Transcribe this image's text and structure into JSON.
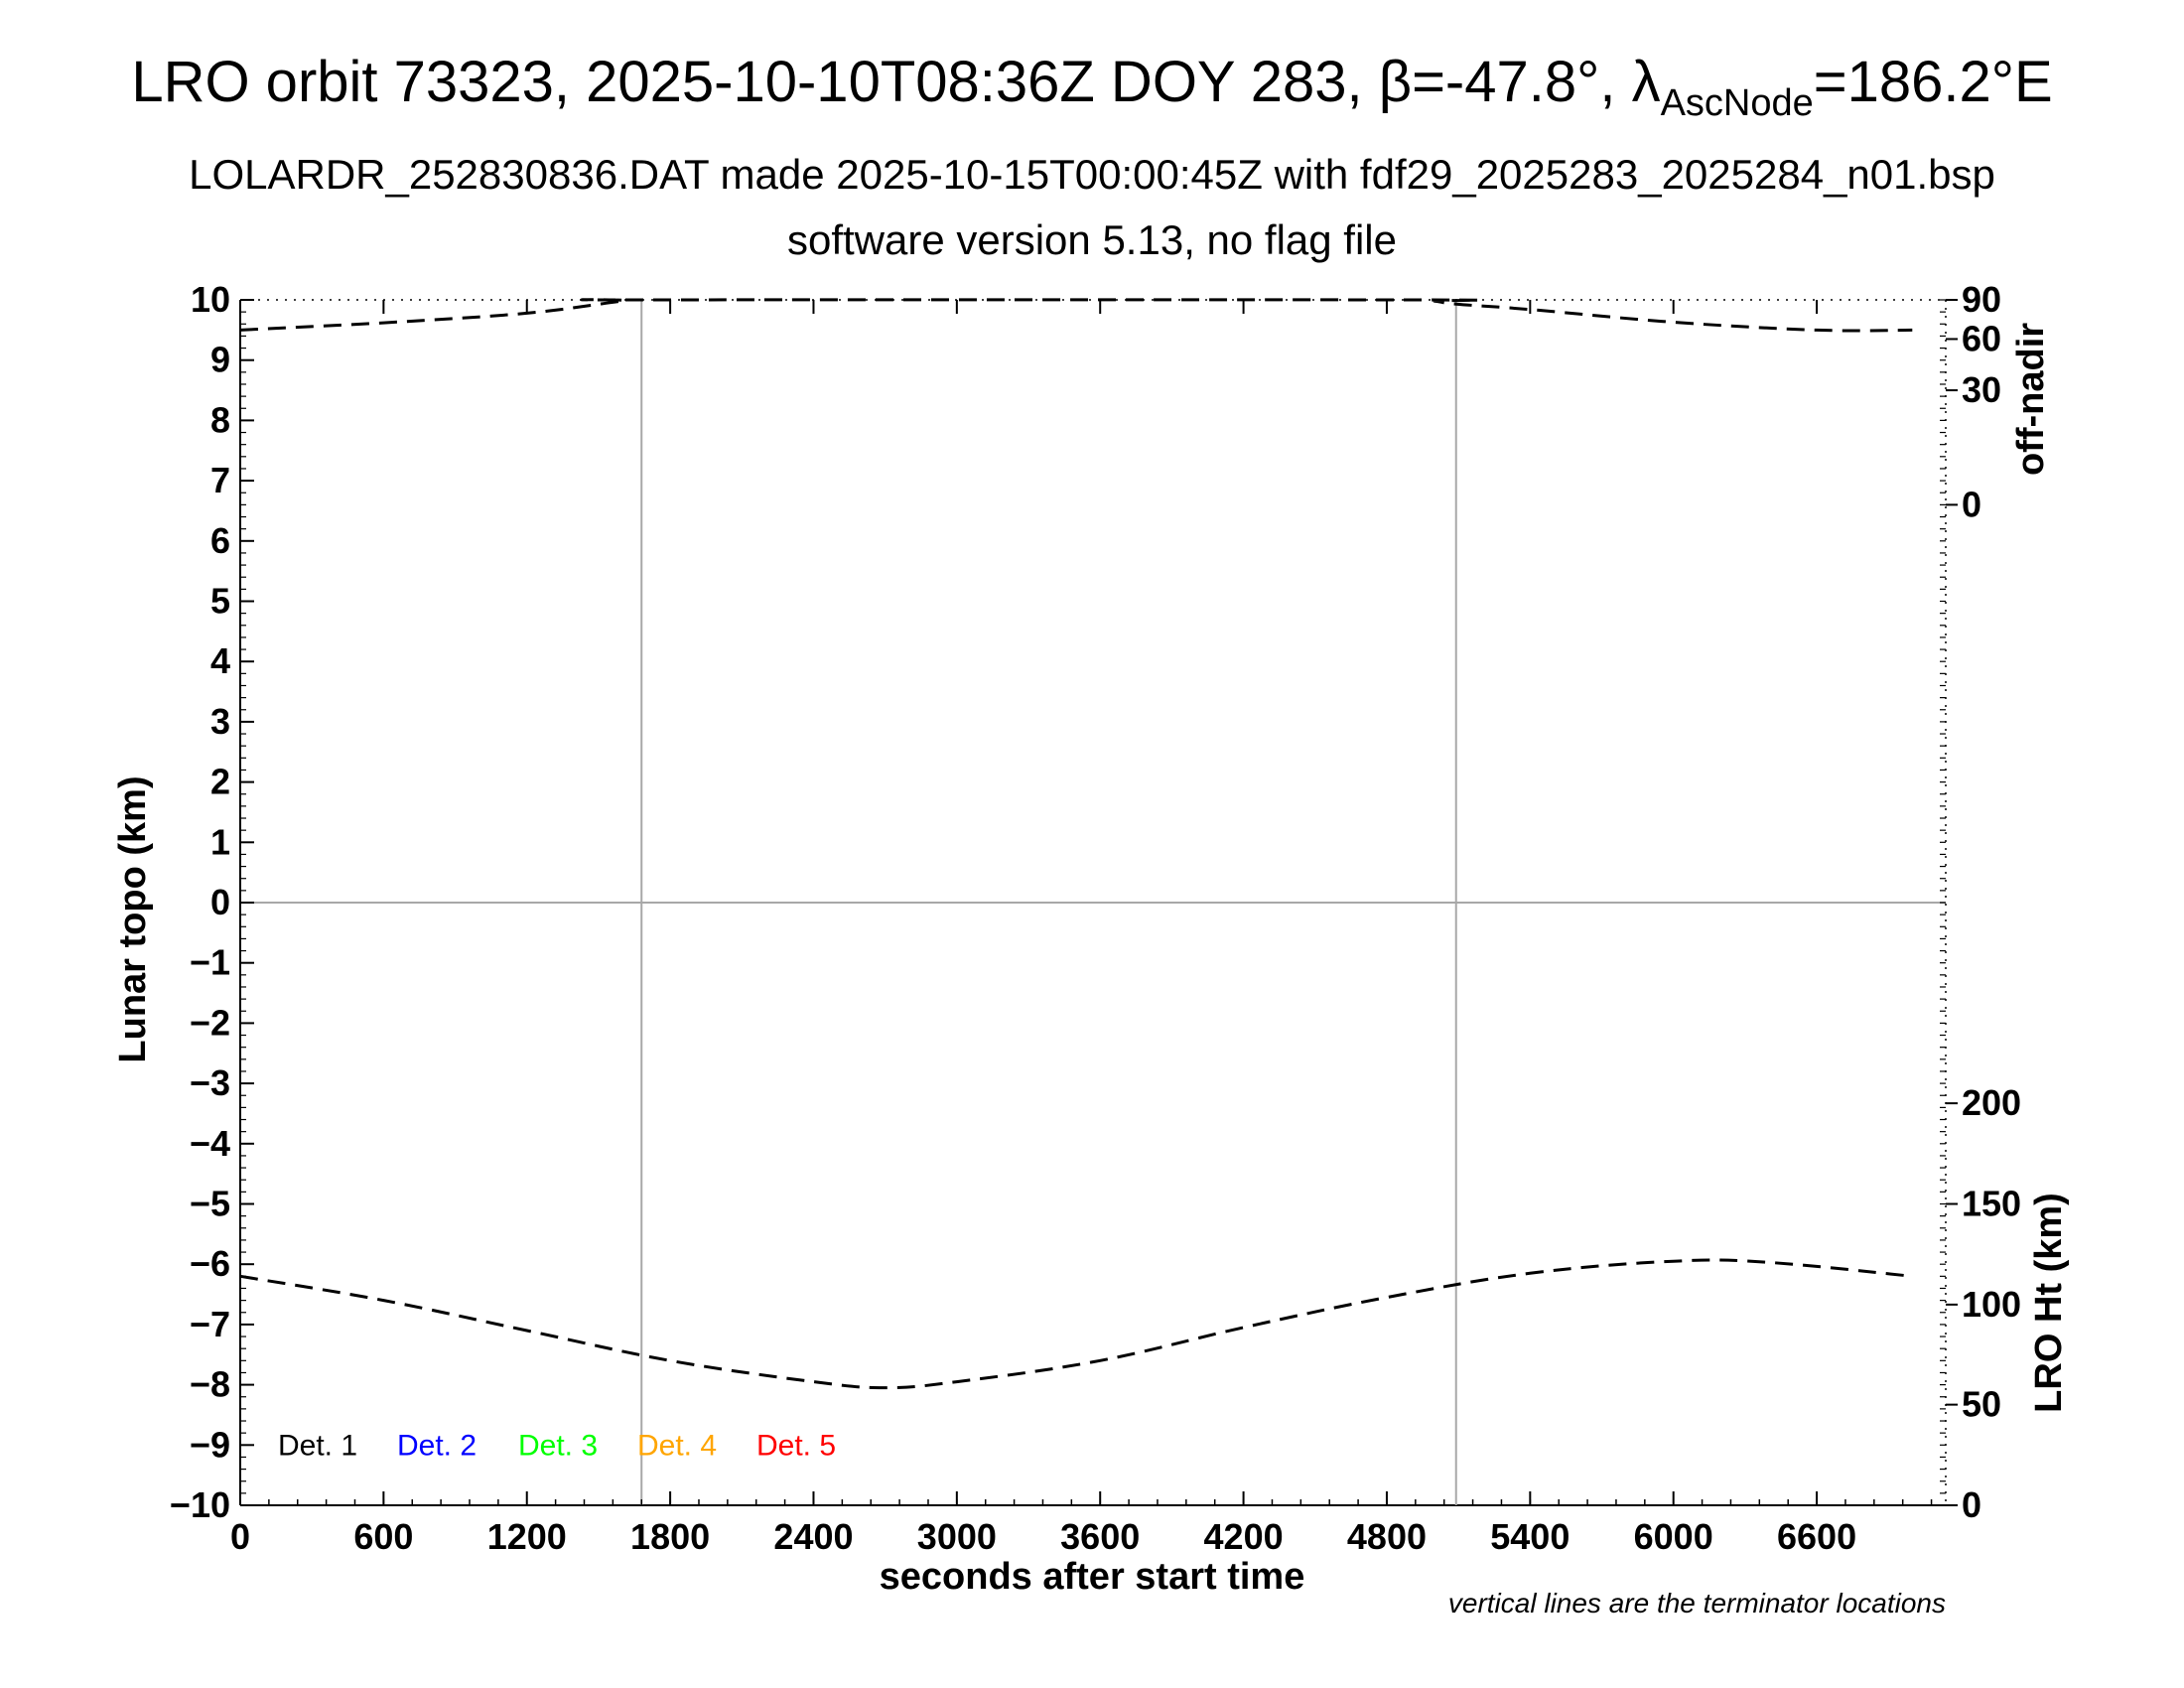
{
  "chart_data": {
    "type": "line",
    "title": {
      "line1_prefix": "LRO orbit 73323, 2025-10-10T08:36Z DOY 283, ",
      "beta_symbol": "β",
      "beta_value": "=-47.8°, ",
      "lambda_symbol": "λ",
      "lambda_subscript": "AscNode",
      "lambda_value": "=186.2°E"
    },
    "subtitle": "LOLARDR_252830836.DAT made 2025-10-15T00:00:45Z with fdf29_2025283_2025284_n01.bsp",
    "subtitle2": "software version 5.13, no flag file",
    "xlabel": "seconds after start time",
    "ylabel": "Lunar topo (km)",
    "y2label_top": "off-nadir",
    "y2label_bottom": "LRO Ht (km)",
    "footnote": "vertical lines are the terminator locations",
    "xlim": [
      0,
      7140
    ],
    "ylim": [
      -10,
      10
    ],
    "x_ticks": [
      0,
      600,
      1200,
      1800,
      2400,
      3000,
      3600,
      4200,
      4800,
      5400,
      6000,
      6600
    ],
    "y_ticks": [
      10,
      9,
      8,
      7,
      6,
      5,
      4,
      3,
      2,
      1,
      0,
      -1,
      -2,
      -3,
      -4,
      -5,
      -6,
      -7,
      -8,
      -9,
      -10
    ],
    "y_tick_labels": [
      "10",
      "9",
      "8",
      "7",
      "6",
      "5",
      "4",
      "3",
      "2",
      "1",
      "0",
      "−1",
      "−2",
      "−3",
      "−4",
      "−5",
      "−6",
      "−7",
      "−8",
      "−9",
      "−10"
    ],
    "offnadir_ticks": [
      {
        "label": "90",
        "y": 10
      },
      {
        "label": "60",
        "y": 9.35
      },
      {
        "label": "30",
        "y": 8.5
      },
      {
        "label": "0",
        "y": 6.6
      }
    ],
    "ht_ticks": [
      {
        "label": "200",
        "y": -3.33
      },
      {
        "label": "150",
        "y": -5
      },
      {
        "label": "100",
        "y": -6.67
      },
      {
        "label": "50",
        "y": -8.33
      },
      {
        "label": "0",
        "y": -10
      }
    ],
    "terminators_x": [
      1680,
      5090
    ],
    "legend": [
      {
        "label": "Det. 1",
        "color": "#000000"
      },
      {
        "label": "Det. 2",
        "color": "#0000ff"
      },
      {
        "label": "Det. 3",
        "color": "#00ff00"
      },
      {
        "label": "Det. 4",
        "color": "#ffa500"
      },
      {
        "label": "Det. 5",
        "color": "#ff0000"
      }
    ],
    "series": [
      {
        "name": "off-nadir",
        "style": "dashed",
        "color": "#000000",
        "x": [
          0,
          600,
          1200,
          1600,
          1700,
          4900,
          5000,
          5090,
          5400,
          6000,
          6600,
          7000
        ],
        "y": [
          9.5,
          9.62,
          9.78,
          9.98,
          10.0,
          10.0,
          9.98,
          9.93,
          9.84,
          9.63,
          9.5,
          9.5
        ]
      },
      {
        "name": "LRO Ht",
        "style": "dashed",
        "color": "#000000",
        "x": [
          0,
          600,
          1200,
          1800,
          2400,
          2700,
          3000,
          3600,
          4200,
          4800,
          5400,
          6000,
          6400,
          7000
        ],
        "y": [
          -6.2,
          -6.6,
          -7.1,
          -7.6,
          -7.95,
          -8.05,
          -7.95,
          -7.6,
          -7.05,
          -6.55,
          -6.15,
          -5.95,
          -5.97,
          -6.2
        ]
      }
    ]
  }
}
